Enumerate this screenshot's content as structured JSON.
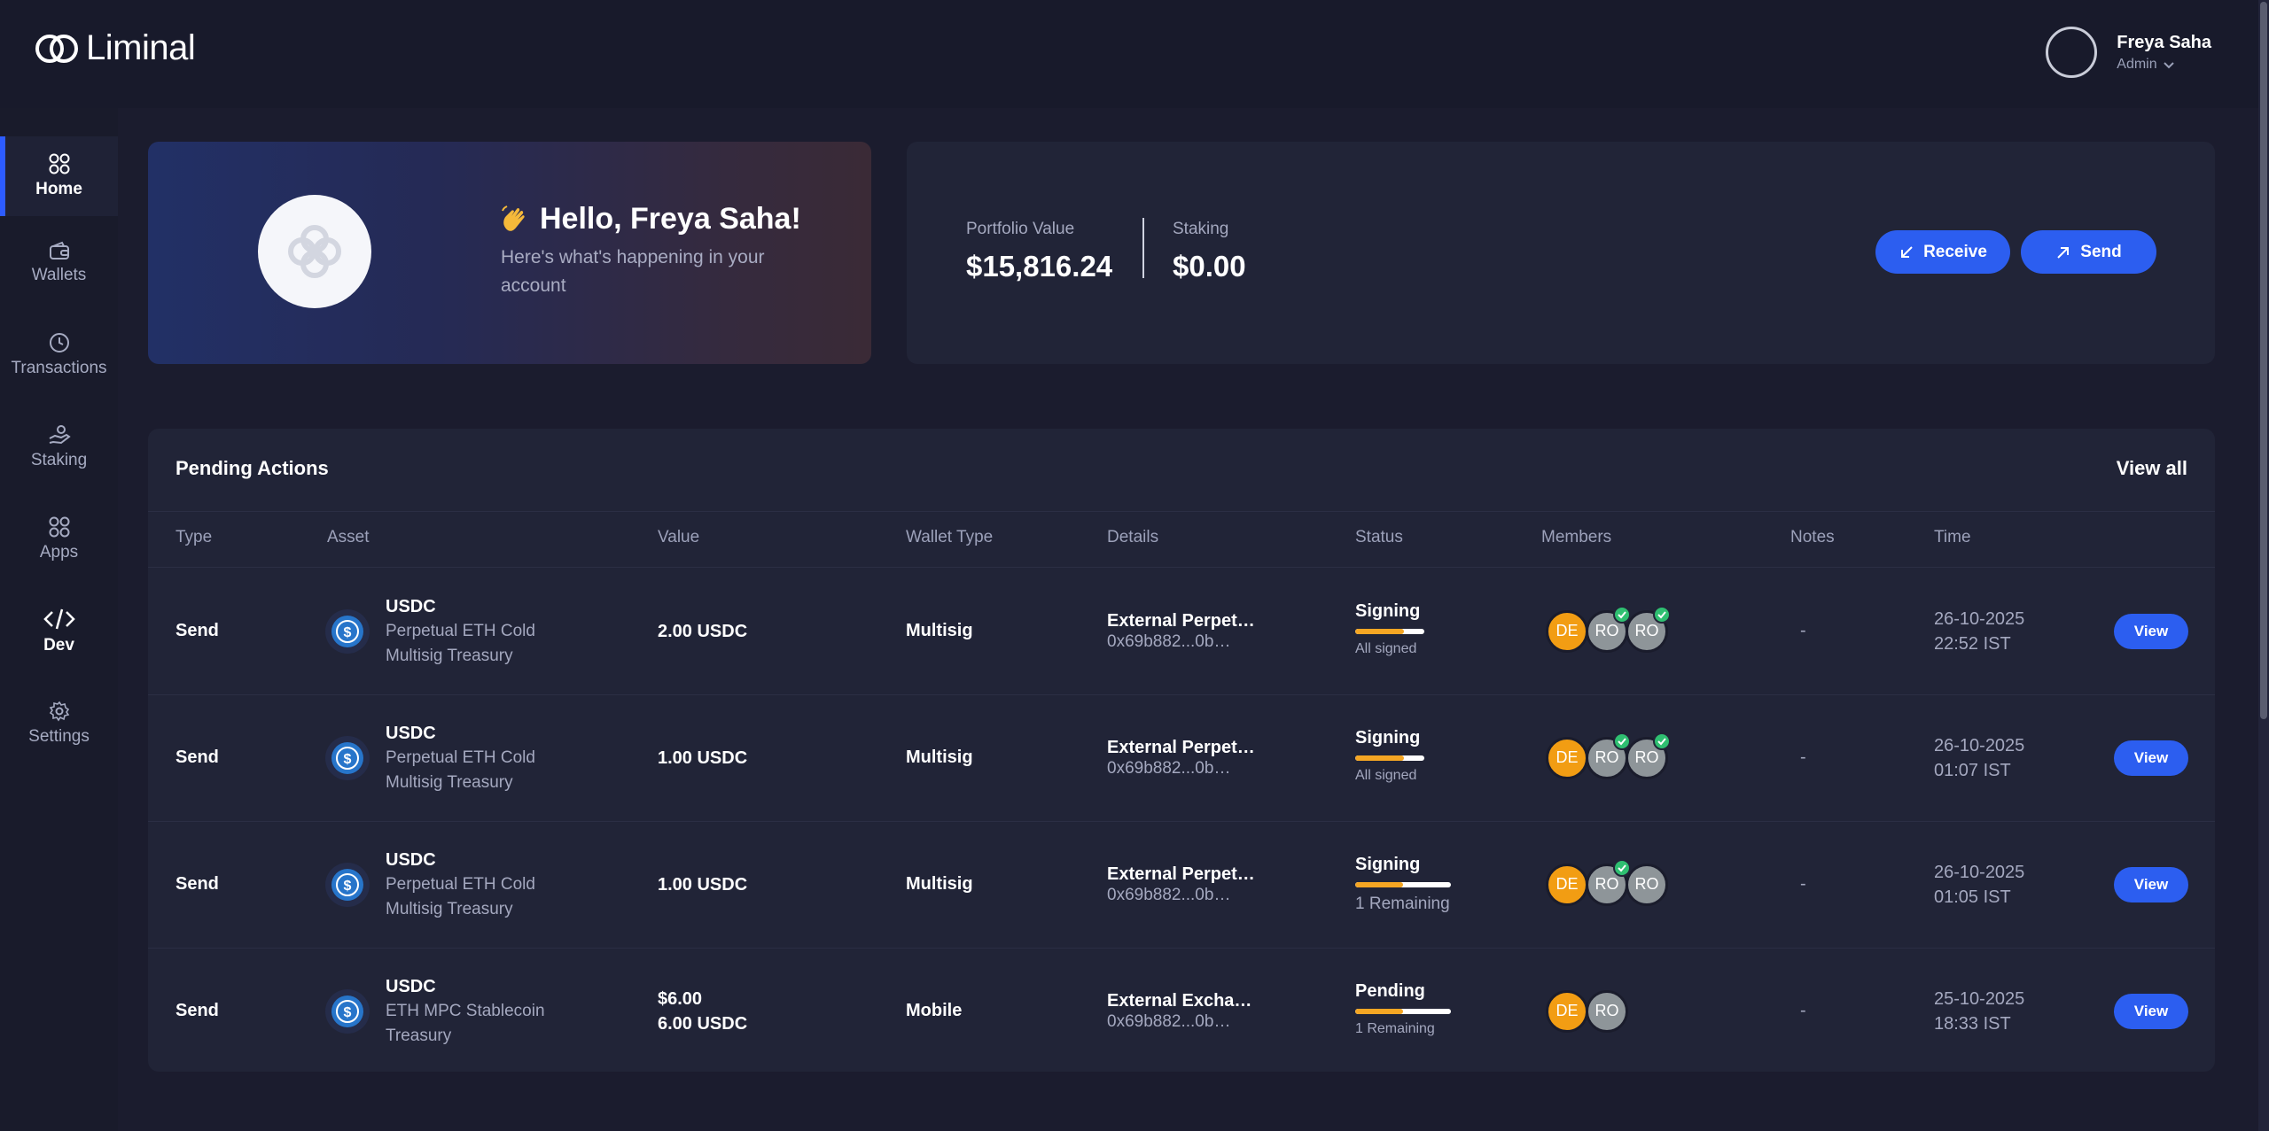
{
  "app": {
    "brand": "Liminal"
  },
  "user": {
    "name": "Freya Saha",
    "role": "Admin"
  },
  "sidebar": {
    "items": [
      {
        "label": "Home",
        "icon": "home-grid-icon",
        "active": true
      },
      {
        "label": "Wallets",
        "icon": "wallet-icon"
      },
      {
        "label": "Transactions",
        "icon": "clock-icon"
      },
      {
        "label": "Staking",
        "icon": "staking-hand-icon"
      },
      {
        "label": "Apps",
        "icon": "apps-grid-icon"
      },
      {
        "label": "Dev",
        "icon": "code-icon"
      },
      {
        "label": "Settings",
        "icon": "gear-icon"
      }
    ]
  },
  "hero": {
    "greeting": "Hello, Freya Saha!",
    "emoji_icon": "waving-hand-icon",
    "subtitle": "Here's what's happening in your account"
  },
  "portfolio": {
    "value_label": "Portfolio Value",
    "value": "$15,816.24",
    "staking_label": "Staking",
    "staking_value": "$0.00",
    "receive_label": "Receive",
    "send_label": "Send"
  },
  "pending": {
    "title": "Pending Actions",
    "view_all": "View all",
    "columns": [
      "Type",
      "Asset",
      "Value",
      "Wallet Type",
      "Details",
      "Status",
      "Members",
      "Notes",
      "Time"
    ],
    "view_label": "View",
    "rows": [
      {
        "type": "Send",
        "asset": "USDC",
        "wallet": "Perpetual ETH Cold Multisig Treasury",
        "value_lines": [
          "2.00 USDC"
        ],
        "wallet_type": "Multisig",
        "details_main": "External Perpet…",
        "details_addr": "0x69b882...0b…",
        "status": "Signing",
        "status_sub": "All signed",
        "progress": 0.7,
        "members": [
          {
            "initials": "DE",
            "role": "de",
            "signed": false
          },
          {
            "initials": "RO",
            "role": "ro",
            "signed": true
          },
          {
            "initials": "RO",
            "role": "ro",
            "signed": true
          }
        ],
        "notes": "-",
        "date": "26-10-2025",
        "time": "22:52 IST"
      },
      {
        "type": "Send",
        "asset": "USDC",
        "wallet": "Perpetual ETH Cold Multisig Treasury",
        "value_lines": [
          "1.00 USDC"
        ],
        "wallet_type": "Multisig",
        "details_main": "External Perpet…",
        "details_addr": "0x69b882...0b…",
        "status": "Signing",
        "status_sub": "All signed",
        "progress": 0.7,
        "members": [
          {
            "initials": "DE",
            "role": "de",
            "signed": false
          },
          {
            "initials": "RO",
            "role": "ro",
            "signed": true
          },
          {
            "initials": "RO",
            "role": "ro",
            "signed": true
          }
        ],
        "notes": "-",
        "date": "26-10-2025",
        "time": "01:07 IST"
      },
      {
        "type": "Send",
        "asset": "USDC",
        "wallet": "Perpetual ETH Cold Multisig Treasury",
        "value_lines": [
          "1.00 USDC"
        ],
        "wallet_type": "Multisig",
        "details_main": "External Perpet…",
        "details_addr": "0x69b882...0b…",
        "status": "Signing",
        "status_sub": "1 Remaining",
        "progress": 0.5,
        "members": [
          {
            "initials": "DE",
            "role": "de",
            "signed": false
          },
          {
            "initials": "RO",
            "role": "ro",
            "signed": true
          },
          {
            "initials": "RO",
            "role": "ro",
            "signed": false
          }
        ],
        "notes": "-",
        "date": "26-10-2025",
        "time": "01:05 IST"
      },
      {
        "type": "Send",
        "asset": "USDC",
        "wallet": "ETH MPC Stablecoin Treasury",
        "value_lines": [
          "$6.00",
          "6.00 USDC"
        ],
        "wallet_type": "Mobile",
        "details_main": "External Excha…",
        "details_addr": "0x69b882...0b…",
        "status": "Pending",
        "status_sub": "1 Remaining",
        "progress": 0.5,
        "members": [
          {
            "initials": "DE",
            "role": "de",
            "signed": false
          },
          {
            "initials": "RO",
            "role": "ro",
            "signed": false
          }
        ],
        "notes": "-",
        "date": "25-10-2025",
        "time": "18:33 IST"
      }
    ]
  },
  "colors": {
    "accent": "#2c5ef0",
    "background": "#1b1c2e",
    "card": "#212437",
    "progress": "#f5a623",
    "signed_check": "#2fbf71",
    "member_de": "#f29d13",
    "member_ro": "#8e9599"
  }
}
